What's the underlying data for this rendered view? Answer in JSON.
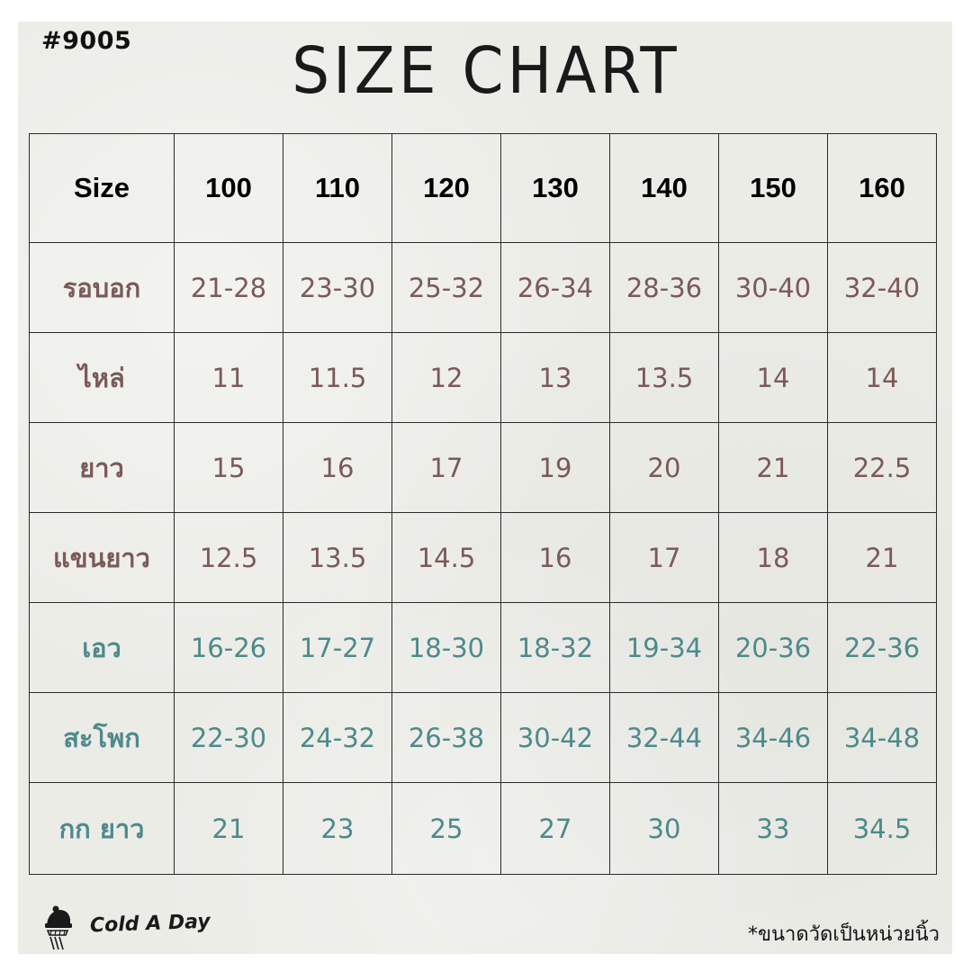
{
  "product_code": "#9005",
  "title": "SIZE CHART",
  "table": {
    "header_label": "Size",
    "sizes": [
      "100",
      "110",
      "120",
      "130",
      "140",
      "150",
      "160"
    ],
    "rows": [
      {
        "label": "รอบอก",
        "values": [
          "21-28",
          "23-30",
          "25-32",
          "26-34",
          "28-36",
          "30-40",
          "32-40"
        ],
        "color": "#7a5a58"
      },
      {
        "label": "ไหล่",
        "values": [
          "11",
          "11.5",
          "12",
          "13",
          "13.5",
          "14",
          "14"
        ],
        "color": "#7a5a58"
      },
      {
        "label": "ยาว",
        "values": [
          "15",
          "16",
          "17",
          "19",
          "20",
          "21",
          "22.5"
        ],
        "color": "#7a5a58"
      },
      {
        "label": "แขนยาว",
        "values": [
          "12.5",
          "13.5",
          "14.5",
          "16",
          "17",
          "18",
          "21"
        ],
        "color": "#7a5a58"
      },
      {
        "label": "เอว",
        "values": [
          "16-26",
          "17-27",
          "18-30",
          "18-32",
          "19-34",
          "20-36",
          "22-36"
        ],
        "color": "#4d8a8c"
      },
      {
        "label": "สะโพก",
        "values": [
          "22-30",
          "24-32",
          "26-38",
          "30-42",
          "32-44",
          "34-46",
          "34-48"
        ],
        "color": "#4d8a8c"
      },
      {
        "label": "กก ยาว",
        "values": [
          "21",
          "23",
          "25",
          "27",
          "30",
          "33",
          "34.5"
        ],
        "color": "#4d8a8c"
      }
    ]
  },
  "footer": {
    "brand": "Cold A Day",
    "logo_icon": "knit-hat-scarf-icon",
    "note": "*ขนาดวัดเป็นหน่วยนิ้ว"
  }
}
